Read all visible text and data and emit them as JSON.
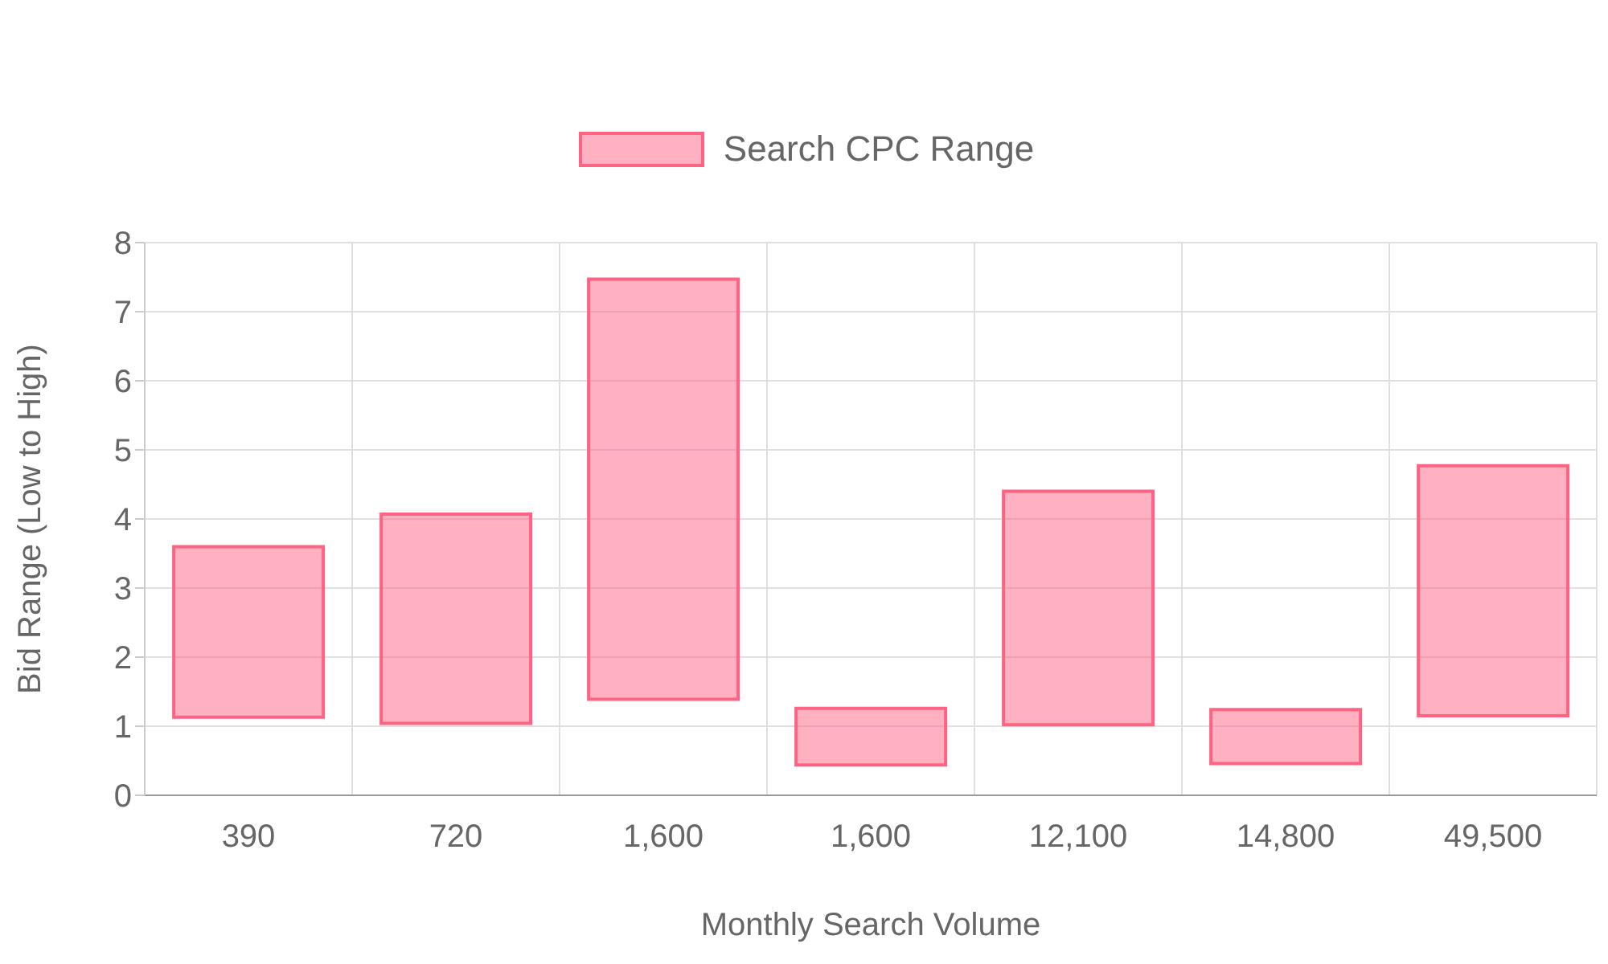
{
  "chart_data": {
    "type": "bar",
    "xlabel": "Monthly Search Volume",
    "ylabel": "Bid Range (Low to High)",
    "categories": [
      "390",
      "720",
      "1,600",
      "1,600",
      "12,100",
      "14,800",
      "49,500"
    ],
    "series": [
      {
        "name": "Search CPC Range",
        "color": "#ff6384",
        "base": [
          1.13,
          1.04,
          1.39,
          0.44,
          1.02,
          0.46,
          1.15
        ],
        "values": [
          2.47,
          3.03,
          6.08,
          0.82,
          3.38,
          0.78,
          3.62
        ]
      }
    ],
    "ylim": [
      0,
      8
    ],
    "yticks": [
      0,
      1,
      2,
      3,
      4,
      5,
      6,
      7,
      8
    ],
    "grid": true,
    "legend": "top"
  }
}
